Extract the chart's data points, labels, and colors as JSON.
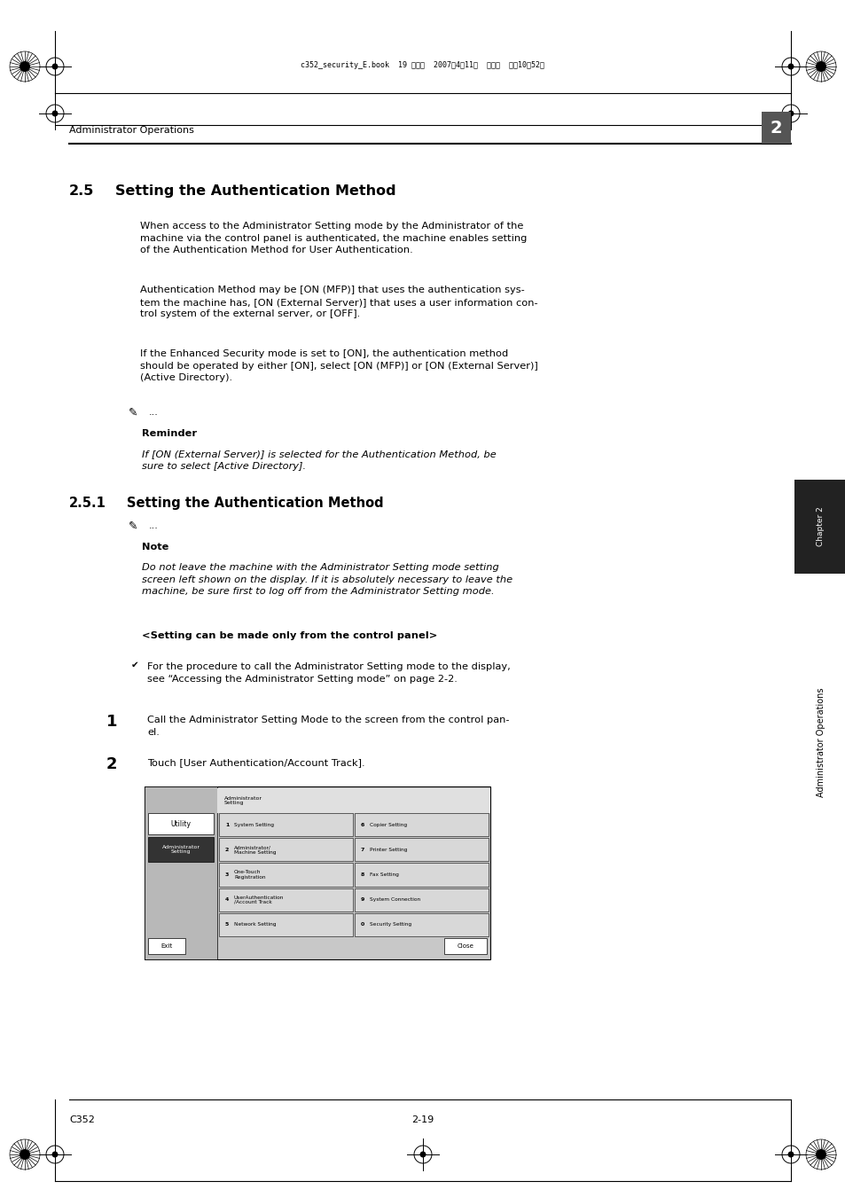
{
  "bg_color": "#ffffff",
  "page_width": 9.54,
  "page_height": 13.5,
  "header_text": "Administrator Operations",
  "chapter_num": "2",
  "chapter_label": "Chapter 2",
  "sidebar_text": "Administrator Operations",
  "footer_left": "C352",
  "footer_right": "2-19",
  "top_filename": "c352_security_E.book  19 ページ  2007年4月11日  水曜日  午前10晈52分",
  "section_25_num": "2.5",
  "section_25_title": "Setting the Authentication Method",
  "para1": "When access to the Administrator Setting mode by the Administrator of the\nmachine via the control panel is authenticated, the machine enables setting\nof the Authentication Method for User Authentication.",
  "para2": "Authentication Method may be [ON (MFP)] that uses the authentication sys-\ntem the machine has, [ON (External Server)] that uses a user information con-\ntrol system of the external server, or [OFF].",
  "para3": "If the Enhanced Security mode is set to [ON], the authentication method\nshould be operated by either [ON], select [ON (MFP)] or [ON (External Server)]\n(Active Directory).",
  "reminder_label": "Reminder",
  "reminder_text": "If [ON (External Server)] is selected for the Authentication Method, be\nsure to select [Active Directory].",
  "section_251_num": "2.5.1",
  "section_251_title": "Setting the Authentication Method",
  "note_label": "Note",
  "note_text": "Do not leave the machine with the Administrator Setting mode setting\nscreen left shown on the display. If it is absolutely necessary to leave the\nmachine, be sure first to log off from the Administrator Setting mode.",
  "setting_panel_text": "<Setting can be made only from the control panel>",
  "checkmark_text": "For the procedure to call the Administrator Setting mode to the display,\nsee “Accessing the Administrator Setting mode” on page 2-2.",
  "step1_num": "1",
  "step1_text": "Call the Administrator Setting Mode to the screen from the control pan-\nel.",
  "step2_num": "2",
  "step2_text": "Touch [User Authentication/Account Track].",
  "screen_menu_items_left": [
    [
      "1",
      "System Setting"
    ],
    [
      "2",
      "Administrator/\nMachine Setting"
    ],
    [
      "3",
      "One-Touch\nRegistration"
    ],
    [
      "4",
      "UserAuthentication\n/Account Track"
    ],
    [
      "5",
      "Network Setting"
    ]
  ],
  "screen_menu_items_right": [
    [
      "6",
      "Copier Setting"
    ],
    [
      "7",
      "Printer Setting"
    ],
    [
      "8",
      "Fax Setting"
    ],
    [
      "9",
      "System Connection"
    ],
    [
      "0",
      "Security Setting"
    ]
  ]
}
